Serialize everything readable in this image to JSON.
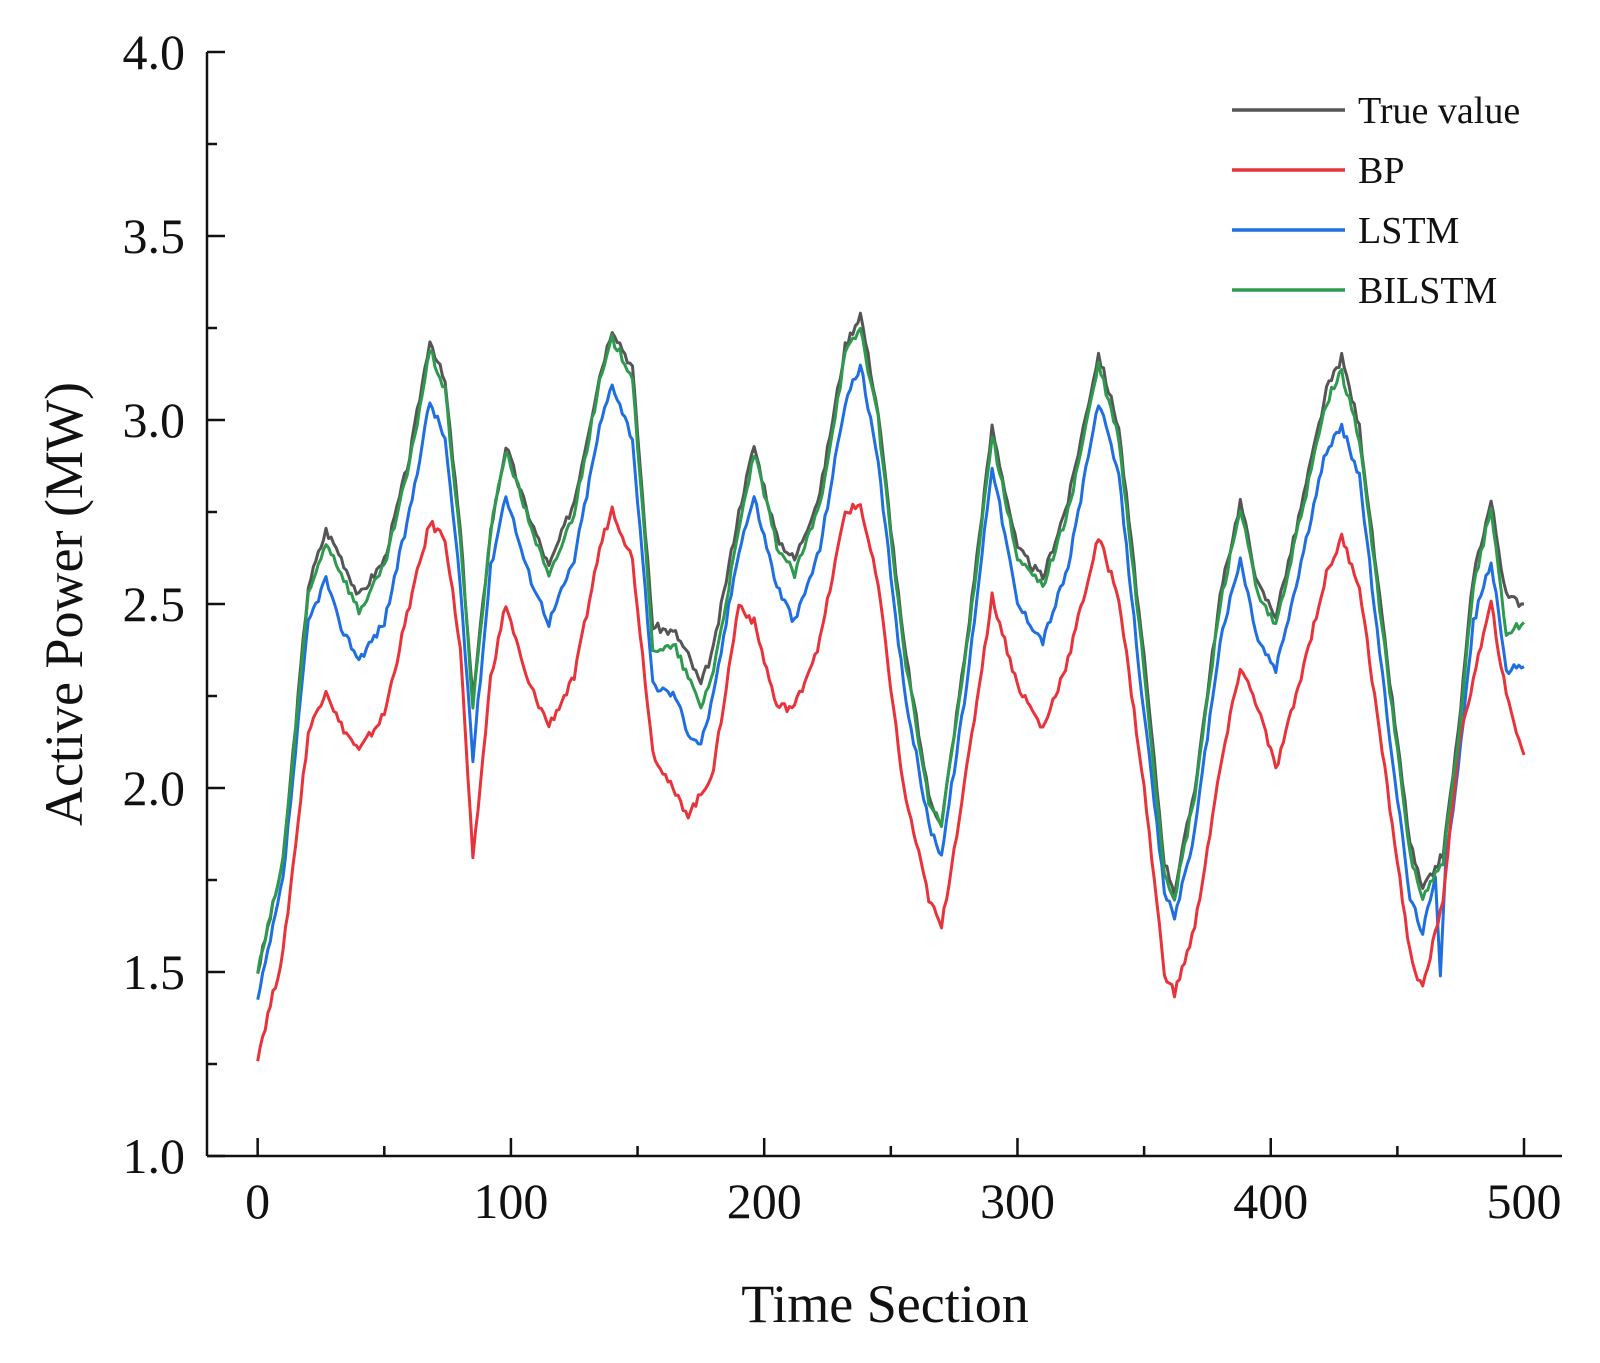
{
  "chart_data": {
    "type": "line",
    "xlabel": "Time Section",
    "ylabel": "Active Power (MW)",
    "xlim": [
      -20,
      515
    ],
    "ylim": [
      1.0,
      4.0
    ],
    "xticks": [
      0,
      100,
      200,
      300,
      400,
      500
    ],
    "xtick_labels": [
      "0",
      "100",
      "200",
      "300",
      "400",
      "500"
    ],
    "yticks": [
      1.0,
      1.5,
      2.0,
      2.5,
      3.0,
      3.5,
      4.0
    ],
    "ytick_labels": [
      "1.0",
      "1.5",
      "2.0",
      "2.5",
      "3.0",
      "3.5",
      "4.0"
    ],
    "grid": false,
    "legend_position": "top-right",
    "series": [
      {
        "name": "True value",
        "color": "#555555",
        "points": [
          [
            0,
            1.5
          ],
          [
            10,
            1.8
          ],
          [
            20,
            2.55
          ],
          [
            27,
            2.7
          ],
          [
            32,
            2.64
          ],
          [
            40,
            2.52
          ],
          [
            50,
            2.62
          ],
          [
            60,
            2.9
          ],
          [
            68,
            3.22
          ],
          [
            74,
            3.1
          ],
          [
            80,
            2.7
          ],
          [
            85,
            2.24
          ],
          [
            92,
            2.7
          ],
          [
            98,
            2.93
          ],
          [
            106,
            2.76
          ],
          [
            115,
            2.6
          ],
          [
            125,
            2.78
          ],
          [
            135,
            3.12
          ],
          [
            140,
            3.25
          ],
          [
            148,
            3.14
          ],
          [
            156,
            2.44
          ],
          [
            165,
            2.42
          ],
          [
            170,
            2.36
          ],
          [
            175,
            2.28
          ],
          [
            180,
            2.38
          ],
          [
            190,
            2.75
          ],
          [
            196,
            2.93
          ],
          [
            205,
            2.68
          ],
          [
            212,
            2.62
          ],
          [
            222,
            2.8
          ],
          [
            232,
            3.2
          ],
          [
            238,
            3.29
          ],
          [
            245,
            3.02
          ],
          [
            255,
            2.4
          ],
          [
            265,
            1.98
          ],
          [
            270,
            1.9
          ],
          [
            280,
            2.4
          ],
          [
            290,
            2.98
          ],
          [
            300,
            2.65
          ],
          [
            310,
            2.57
          ],
          [
            320,
            2.78
          ],
          [
            332,
            3.18
          ],
          [
            340,
            2.98
          ],
          [
            350,
            2.35
          ],
          [
            358,
            1.8
          ],
          [
            362,
            1.72
          ],
          [
            370,
            2.0
          ],
          [
            380,
            2.52
          ],
          [
            388,
            2.78
          ],
          [
            395,
            2.55
          ],
          [
            402,
            2.47
          ],
          [
            410,
            2.7
          ],
          [
            422,
            3.08
          ],
          [
            428,
            3.17
          ],
          [
            435,
            2.98
          ],
          [
            445,
            2.4
          ],
          [
            455,
            1.85
          ],
          [
            460,
            1.72
          ],
          [
            468,
            1.82
          ],
          [
            474,
            2.15
          ],
          [
            480,
            2.58
          ],
          [
            487,
            2.78
          ],
          [
            493,
            2.52
          ],
          [
            500,
            2.5
          ]
        ]
      },
      {
        "name": "BP",
        "color": "#e8333a",
        "points": [
          [
            0,
            1.27
          ],
          [
            10,
            1.55
          ],
          [
            20,
            2.15
          ],
          [
            27,
            2.27
          ],
          [
            32,
            2.18
          ],
          [
            40,
            2.1
          ],
          [
            50,
            2.2
          ],
          [
            60,
            2.5
          ],
          [
            68,
            2.72
          ],
          [
            74,
            2.68
          ],
          [
            80,
            2.38
          ],
          [
            85,
            1.8
          ],
          [
            92,
            2.3
          ],
          [
            98,
            2.5
          ],
          [
            106,
            2.3
          ],
          [
            115,
            2.17
          ],
          [
            125,
            2.3
          ],
          [
            135,
            2.65
          ],
          [
            140,
            2.76
          ],
          [
            148,
            2.62
          ],
          [
            156,
            2.1
          ],
          [
            165,
            1.98
          ],
          [
            170,
            1.93
          ],
          [
            175,
            1.98
          ],
          [
            180,
            2.05
          ],
          [
            190,
            2.5
          ],
          [
            196,
            2.45
          ],
          [
            205,
            2.22
          ],
          [
            212,
            2.22
          ],
          [
            222,
            2.4
          ],
          [
            232,
            2.75
          ],
          [
            238,
            2.77
          ],
          [
            245,
            2.55
          ],
          [
            255,
            2.0
          ],
          [
            265,
            1.7
          ],
          [
            270,
            1.62
          ],
          [
            280,
            2.05
          ],
          [
            290,
            2.52
          ],
          [
            300,
            2.28
          ],
          [
            310,
            2.16
          ],
          [
            320,
            2.35
          ],
          [
            332,
            2.68
          ],
          [
            340,
            2.52
          ],
          [
            350,
            2.0
          ],
          [
            358,
            1.5
          ],
          [
            362,
            1.44
          ],
          [
            370,
            1.62
          ],
          [
            380,
            2.05
          ],
          [
            388,
            2.33
          ],
          [
            395,
            2.22
          ],
          [
            402,
            2.05
          ],
          [
            410,
            2.25
          ],
          [
            422,
            2.58
          ],
          [
            428,
            2.68
          ],
          [
            435,
            2.55
          ],
          [
            445,
            2.05
          ],
          [
            455,
            1.55
          ],
          [
            460,
            1.45
          ],
          [
            468,
            1.7
          ],
          [
            474,
            2.1
          ],
          [
            480,
            2.3
          ],
          [
            487,
            2.5
          ],
          [
            493,
            2.25
          ],
          [
            500,
            2.09
          ]
        ]
      },
      {
        "name": "LSTM",
        "color": "#1f6fe0",
        "points": [
          [
            0,
            1.42
          ],
          [
            10,
            1.75
          ],
          [
            20,
            2.45
          ],
          [
            27,
            2.57
          ],
          [
            32,
            2.45
          ],
          [
            40,
            2.35
          ],
          [
            50,
            2.45
          ],
          [
            60,
            2.75
          ],
          [
            68,
            3.05
          ],
          [
            74,
            2.95
          ],
          [
            80,
            2.55
          ],
          [
            85,
            2.08
          ],
          [
            92,
            2.6
          ],
          [
            98,
            2.8
          ],
          [
            106,
            2.6
          ],
          [
            115,
            2.45
          ],
          [
            125,
            2.62
          ],
          [
            135,
            2.98
          ],
          [
            140,
            3.1
          ],
          [
            148,
            2.95
          ],
          [
            156,
            2.28
          ],
          [
            165,
            2.25
          ],
          [
            170,
            2.15
          ],
          [
            175,
            2.12
          ],
          [
            180,
            2.25
          ],
          [
            190,
            2.65
          ],
          [
            196,
            2.79
          ],
          [
            205,
            2.55
          ],
          [
            212,
            2.45
          ],
          [
            222,
            2.65
          ],
          [
            232,
            3.05
          ],
          [
            238,
            3.15
          ],
          [
            245,
            2.88
          ],
          [
            255,
            2.28
          ],
          [
            265,
            1.9
          ],
          [
            270,
            1.82
          ],
          [
            280,
            2.28
          ],
          [
            290,
            2.88
          ],
          [
            300,
            2.5
          ],
          [
            310,
            2.4
          ],
          [
            320,
            2.6
          ],
          [
            332,
            3.05
          ],
          [
            340,
            2.85
          ],
          [
            350,
            2.2
          ],
          [
            358,
            1.72
          ],
          [
            362,
            1.65
          ],
          [
            370,
            1.88
          ],
          [
            380,
            2.4
          ],
          [
            388,
            2.62
          ],
          [
            395,
            2.4
          ],
          [
            402,
            2.32
          ],
          [
            410,
            2.55
          ],
          [
            422,
            2.92
          ],
          [
            428,
            2.98
          ],
          [
            435,
            2.85
          ],
          [
            445,
            2.25
          ],
          [
            455,
            1.7
          ],
          [
            460,
            1.61
          ],
          [
            465,
            1.75
          ],
          [
            467,
            1.5
          ],
          [
            469,
            1.8
          ],
          [
            474,
            2.05
          ],
          [
            480,
            2.45
          ],
          [
            487,
            2.62
          ],
          [
            493,
            2.32
          ],
          [
            500,
            2.33
          ]
        ]
      },
      {
        "name": "BILSTM",
        "color": "#2e9a4e",
        "points": [
          [
            0,
            1.5
          ],
          [
            10,
            1.8
          ],
          [
            20,
            2.52
          ],
          [
            27,
            2.67
          ],
          [
            32,
            2.6
          ],
          [
            40,
            2.48
          ],
          [
            50,
            2.6
          ],
          [
            60,
            2.88
          ],
          [
            68,
            3.19
          ],
          [
            74,
            3.08
          ],
          [
            80,
            2.68
          ],
          [
            85,
            2.22
          ],
          [
            92,
            2.7
          ],
          [
            98,
            2.92
          ],
          [
            106,
            2.75
          ],
          [
            115,
            2.57
          ],
          [
            125,
            2.75
          ],
          [
            135,
            3.1
          ],
          [
            140,
            3.22
          ],
          [
            148,
            3.12
          ],
          [
            156,
            2.38
          ],
          [
            165,
            2.38
          ],
          [
            170,
            2.3
          ],
          [
            175,
            2.22
          ],
          [
            180,
            2.32
          ],
          [
            190,
            2.7
          ],
          [
            196,
            2.91
          ],
          [
            205,
            2.66
          ],
          [
            212,
            2.58
          ],
          [
            222,
            2.77
          ],
          [
            232,
            3.18
          ],
          [
            238,
            3.25
          ],
          [
            245,
            3.0
          ],
          [
            255,
            2.38
          ],
          [
            265,
            1.96
          ],
          [
            270,
            1.9
          ],
          [
            280,
            2.38
          ],
          [
            290,
            2.96
          ],
          [
            300,
            2.62
          ],
          [
            310,
            2.55
          ],
          [
            320,
            2.75
          ],
          [
            332,
            3.15
          ],
          [
            340,
            2.95
          ],
          [
            350,
            2.32
          ],
          [
            358,
            1.77
          ],
          [
            362,
            1.7
          ],
          [
            370,
            1.98
          ],
          [
            380,
            2.5
          ],
          [
            388,
            2.76
          ],
          [
            395,
            2.52
          ],
          [
            402,
            2.44
          ],
          [
            410,
            2.68
          ],
          [
            422,
            3.05
          ],
          [
            428,
            3.13
          ],
          [
            435,
            2.95
          ],
          [
            445,
            2.38
          ],
          [
            455,
            1.82
          ],
          [
            460,
            1.7
          ],
          [
            468,
            1.8
          ],
          [
            474,
            2.12
          ],
          [
            480,
            2.55
          ],
          [
            487,
            2.76
          ],
          [
            493,
            2.42
          ],
          [
            500,
            2.45
          ]
        ]
      }
    ]
  }
}
